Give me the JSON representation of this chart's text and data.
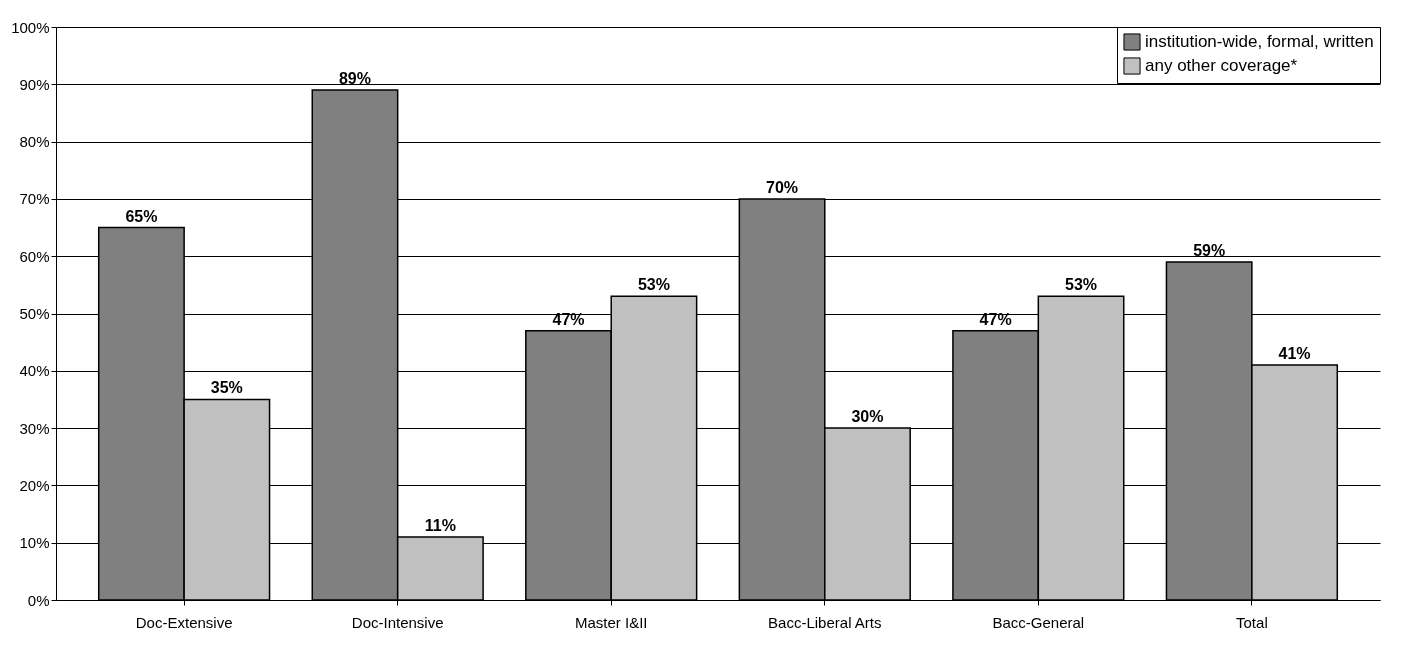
{
  "chart_data": {
    "type": "bar",
    "categories": [
      "Doc-Extensive",
      "Doc-Intensive",
      "Master I&II",
      "Bacc-Liberal Arts",
      "Bacc-General",
      "Total"
    ],
    "series": [
      {
        "name": "institution-wide, formal, written",
        "color": "#808080",
        "values": [
          65,
          89,
          47,
          70,
          47,
          59
        ],
        "value_labels": [
          "65%",
          "89%",
          "47%",
          "70%",
          "47%",
          "59%"
        ]
      },
      {
        "name": "any other coverage*",
        "color": "#c0c0c0",
        "values": [
          35,
          11,
          53,
          30,
          53,
          41
        ],
        "value_labels": [
          "35%",
          "11%",
          "53%",
          "30%",
          "53%",
          "41%"
        ]
      }
    ],
    "ylim": [
      0,
      100
    ],
    "yticks": [
      {
        "value": 0,
        "label": "0%"
      },
      {
        "value": 10,
        "label": "10%"
      },
      {
        "value": 20,
        "label": "20%"
      },
      {
        "value": 30,
        "label": "30%"
      },
      {
        "value": 40,
        "label": "40%"
      },
      {
        "value": 50,
        "label": "50%"
      },
      {
        "value": 60,
        "label": "60%"
      },
      {
        "value": 70,
        "label": "70%"
      },
      {
        "value": 80,
        "label": "80%"
      },
      {
        "value": 90,
        "label": "90%"
      },
      {
        "value": 100,
        "label": "100%"
      }
    ],
    "grid": "y",
    "legend": "top right"
  }
}
